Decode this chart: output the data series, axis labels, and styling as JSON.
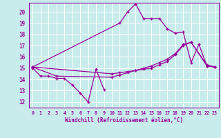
{
  "xlabel": "Windchill (Refroidissement éolien,°C)",
  "bg_color": "#c8ecec",
  "line_color": "#990099",
  "grid_color": "#ffffff",
  "xlim": [
    -0.5,
    23.5
  ],
  "ylim": [
    11.5,
    20.8
  ],
  "yticks": [
    12,
    13,
    14,
    15,
    16,
    17,
    18,
    19,
    20
  ],
  "xticks": [
    0,
    1,
    2,
    3,
    4,
    5,
    6,
    7,
    8,
    9,
    10,
    11,
    12,
    13,
    14,
    15,
    16,
    17,
    18,
    19,
    20,
    21,
    22,
    23
  ],
  "lines": [
    {
      "x": [
        0,
        1,
        2,
        3,
        4,
        5,
        6,
        7,
        8,
        9
      ],
      "y": [
        15.0,
        14.3,
        14.3,
        14.1,
        14.1,
        13.5,
        12.8,
        12.0,
        14.9,
        13.1
      ]
    },
    {
      "x": [
        0,
        11,
        12,
        13,
        14,
        15,
        16,
        17,
        18,
        19,
        20,
        21,
        22,
        23
      ],
      "y": [
        15.1,
        19.0,
        20.0,
        20.7,
        19.4,
        19.4,
        19.4,
        18.5,
        18.1,
        18.2,
        15.5,
        17.1,
        15.2,
        15.1
      ]
    },
    {
      "x": [
        0,
        10,
        11,
        12,
        13,
        14,
        15,
        16,
        17,
        18,
        19,
        20,
        22,
        23
      ],
      "y": [
        15.1,
        14.5,
        14.6,
        14.7,
        14.8,
        14.9,
        15.0,
        15.3,
        15.6,
        16.2,
        17.0,
        17.3,
        15.3,
        15.1
      ]
    },
    {
      "x": [
        0,
        3,
        10,
        11,
        12,
        13,
        14,
        15,
        16,
        17,
        18,
        19,
        20,
        22,
        23
      ],
      "y": [
        15.1,
        14.3,
        14.2,
        14.4,
        14.6,
        14.8,
        15.0,
        15.2,
        15.5,
        15.8,
        16.3,
        17.1,
        17.3,
        15.2,
        15.1
      ]
    }
  ]
}
